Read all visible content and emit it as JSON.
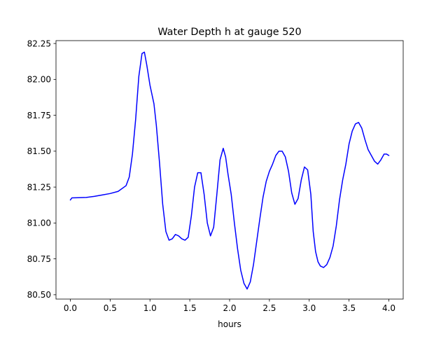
{
  "chart_data": {
    "type": "line",
    "title": "Water Depth h at gauge 520",
    "xlabel": "hours",
    "ylabel": "",
    "xlim": [
      -0.18,
      4.18
    ],
    "ylim": [
      80.47,
      82.27
    ],
    "xticks": [
      0.0,
      0.5,
      1.0,
      1.5,
      2.0,
      2.5,
      3.0,
      3.5,
      4.0
    ],
    "xtick_labels": [
      "0.0",
      "0.5",
      "1.0",
      "1.5",
      "2.0",
      "2.5",
      "3.0",
      "3.5",
      "4.0"
    ],
    "yticks": [
      80.5,
      80.75,
      81.0,
      81.25,
      81.5,
      81.75,
      82.0,
      82.25
    ],
    "ytick_labels": [
      "80.50",
      "80.75",
      "81.00",
      "81.25",
      "81.50",
      "81.75",
      "82.00",
      "82.25"
    ],
    "grid": false,
    "series": [
      {
        "color": "#0000ff",
        "x": [
          0.0,
          0.02,
          0.1,
          0.2,
          0.3,
          0.4,
          0.5,
          0.6,
          0.7,
          0.74,
          0.78,
          0.82,
          0.86,
          0.9,
          0.93,
          0.96,
          1.0,
          1.05,
          1.08,
          1.12,
          1.16,
          1.2,
          1.24,
          1.28,
          1.32,
          1.36,
          1.4,
          1.44,
          1.48,
          1.52,
          1.56,
          1.6,
          1.64,
          1.68,
          1.72,
          1.76,
          1.8,
          1.84,
          1.88,
          1.92,
          1.95,
          1.98,
          2.02,
          2.06,
          2.1,
          2.14,
          2.18,
          2.22,
          2.26,
          2.3,
          2.34,
          2.38,
          2.42,
          2.46,
          2.5,
          2.54,
          2.58,
          2.62,
          2.66,
          2.7,
          2.74,
          2.78,
          2.82,
          2.86,
          2.9,
          2.94,
          2.98,
          3.02,
          3.05,
          3.08,
          3.11,
          3.14,
          3.18,
          3.22,
          3.26,
          3.3,
          3.34,
          3.38,
          3.42,
          3.46,
          3.5,
          3.54,
          3.58,
          3.62,
          3.66,
          3.7,
          3.74,
          3.78,
          3.82,
          3.86,
          3.9,
          3.94,
          3.97,
          4.0
        ],
        "y": [
          81.16,
          81.175,
          81.176,
          81.178,
          81.185,
          81.195,
          81.205,
          81.22,
          81.26,
          81.32,
          81.48,
          81.72,
          82.02,
          82.18,
          82.19,
          82.1,
          81.96,
          81.83,
          81.68,
          81.42,
          81.13,
          80.94,
          80.88,
          80.89,
          80.92,
          80.91,
          80.89,
          80.88,
          80.9,
          81.05,
          81.25,
          81.35,
          81.35,
          81.2,
          81.0,
          80.91,
          80.97,
          81.2,
          81.44,
          81.52,
          81.46,
          81.34,
          81.2,
          81.0,
          80.82,
          80.67,
          80.58,
          80.54,
          80.59,
          80.71,
          80.87,
          81.03,
          81.18,
          81.29,
          81.36,
          81.41,
          81.47,
          81.5,
          81.5,
          81.46,
          81.36,
          81.21,
          81.13,
          81.17,
          81.3,
          81.39,
          81.37,
          81.2,
          80.94,
          80.8,
          80.73,
          80.7,
          80.69,
          80.71,
          80.76,
          80.84,
          80.98,
          81.16,
          81.3,
          81.41,
          81.55,
          81.64,
          81.69,
          81.7,
          81.66,
          81.58,
          81.51,
          81.47,
          81.43,
          81.41,
          81.44,
          81.48,
          81.48,
          81.47
        ]
      }
    ]
  }
}
